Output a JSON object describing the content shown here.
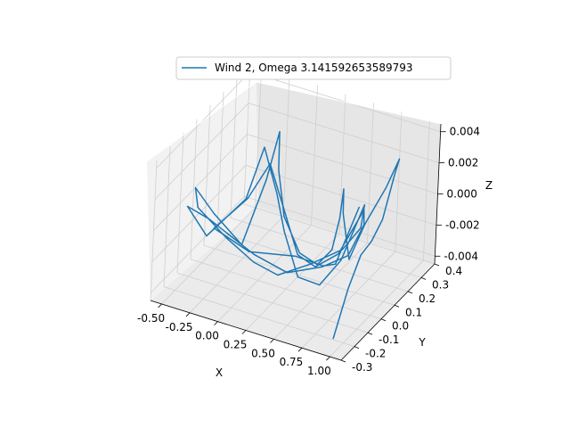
{
  "chart_data": {
    "type": "line",
    "projection": "3d",
    "title": "",
    "xlabel": "X",
    "ylabel": "Y",
    "zlabel": "Z",
    "xlim": [
      -0.6,
      1.1
    ],
    "ylim": [
      -0.3,
      0.4
    ],
    "zlim": [
      -0.0045,
      0.0045
    ],
    "xticks": [
      "-0.50",
      "-0.25",
      "0.00",
      "0.25",
      "0.50",
      "0.75",
      "1.00"
    ],
    "xtick_values": [
      -0.5,
      -0.25,
      0.0,
      0.25,
      0.5,
      0.75,
      1.0
    ],
    "yticks": [
      "-0.3",
      "-0.2",
      "-0.1",
      "0.0",
      "0.1",
      "0.2",
      "0.3",
      "0.4"
    ],
    "ytick_values": [
      -0.3,
      -0.2,
      -0.1,
      0.0,
      0.1,
      0.2,
      0.3,
      0.4
    ],
    "zticks": [
      "-0.004",
      "-0.002",
      "0.000",
      "0.002",
      "0.004"
    ],
    "ztick_values": [
      -0.004,
      -0.002,
      0.0,
      0.002,
      0.004
    ],
    "grid": true,
    "legend_position": "top-center",
    "series": [
      {
        "name": "Wind 2, Omega 3.141592653589793",
        "color": "#1f77b4",
        "points": [
          [
            1.0,
            -0.28,
            -0.0035
          ],
          [
            1.02,
            -0.2,
            -0.001
          ],
          [
            1.03,
            -0.12,
            0.0005
          ],
          [
            1.04,
            -0.05,
            0.0008
          ],
          [
            1.05,
            0.02,
            0.0016
          ],
          [
            1.05,
            0.1,
            0.0038
          ],
          [
            1.03,
            0.15,
            0.0043
          ],
          [
            0.98,
            0.1,
            0.0028
          ],
          [
            0.92,
            0.0,
            0.0012
          ],
          [
            0.85,
            -0.05,
            -0.0008
          ],
          [
            0.78,
            -0.05,
            0.002
          ],
          [
            0.72,
            0.0,
            0.003
          ],
          [
            0.64,
            0.05,
            0.0005
          ],
          [
            0.55,
            0.08,
            -0.002
          ],
          [
            0.45,
            0.06,
            -0.003
          ],
          [
            0.3,
            0.05,
            -0.0025
          ],
          [
            0.15,
            0.05,
            -0.0005
          ],
          [
            0.05,
            0.08,
            0.002
          ],
          [
            0.0,
            0.12,
            0.004
          ],
          [
            -0.02,
            0.05,
            0.0015
          ],
          [
            -0.1,
            -0.05,
            -0.002
          ],
          [
            -0.3,
            -0.1,
            0.0
          ],
          [
            -0.45,
            -0.12,
            0.0015
          ],
          [
            -0.5,
            -0.05,
            -0.0005
          ],
          [
            -0.35,
            0.05,
            -0.003
          ],
          [
            -0.1,
            0.05,
            -0.004
          ],
          [
            0.15,
            0.02,
            -0.004
          ],
          [
            0.4,
            0.05,
            -0.003
          ],
          [
            0.62,
            0.1,
            -0.002
          ],
          [
            0.75,
            0.12,
            -0.0005
          ],
          [
            0.82,
            0.08,
            0.0015
          ],
          [
            0.78,
            -0.05,
            -0.001
          ],
          [
            0.6,
            -0.05,
            -0.003
          ],
          [
            0.35,
            0.0,
            -0.0035
          ],
          [
            0.1,
            0.1,
            -0.002
          ],
          [
            0.0,
            0.12,
            0.0
          ],
          [
            -0.05,
            0.05,
            0.0035
          ],
          [
            -0.08,
            -0.05,
            0.001
          ],
          [
            -0.3,
            -0.15,
            -0.001
          ],
          [
            -0.48,
            -0.15,
            0.0005
          ],
          [
            -0.4,
            -0.05,
            -0.001
          ],
          [
            -0.1,
            0.05,
            -0.0035
          ],
          [
            0.2,
            0.05,
            -0.004
          ],
          [
            0.45,
            0.1,
            -0.0035
          ],
          [
            0.65,
            0.12,
            -0.0025
          ],
          [
            0.8,
            0.1,
            0.0
          ],
          [
            0.85,
            0.05,
            0.0015
          ],
          [
            0.72,
            -0.02,
            -0.001
          ],
          [
            0.5,
            0.0,
            -0.0025
          ],
          [
            0.25,
            0.08,
            -0.003
          ],
          [
            0.05,
            0.15,
            -0.0015
          ],
          [
            -0.05,
            0.1,
            0.002
          ],
          [
            -0.12,
            0.0,
            0.0005
          ],
          [
            -0.35,
            -0.05,
            -0.0015
          ],
          [
            -0.2,
            0.1,
            -0.004
          ],
          [
            0.1,
            0.2,
            -0.0045
          ],
          [
            0.4,
            0.15,
            -0.004
          ],
          [
            0.62,
            0.05,
            -0.0025
          ],
          [
            0.75,
            0.1,
            0.001
          ]
        ]
      }
    ]
  }
}
